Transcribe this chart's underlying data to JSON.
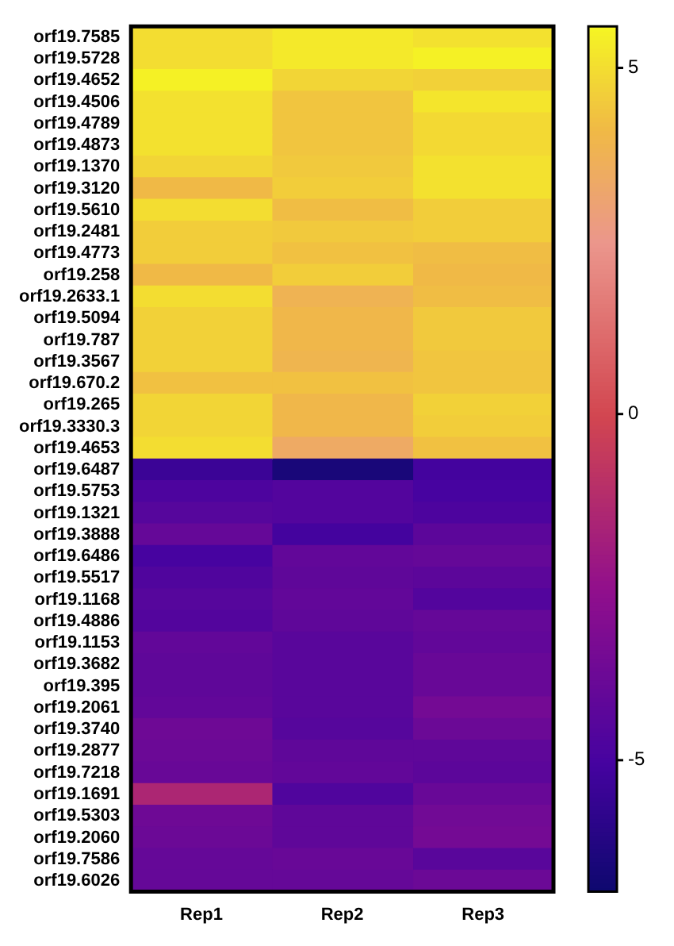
{
  "chart_data": {
    "type": "heatmap",
    "categories": [
      "Rep1",
      "Rep2",
      "Rep3"
    ],
    "y_categories": [
      "orf19.7585",
      "orf19.5728",
      "orf19.4652",
      "orf19.4506",
      "orf19.4789",
      "orf19.4873",
      "orf19.1370",
      "orf19.3120",
      "orf19.5610",
      "orf19.2481",
      "orf19.4773",
      "orf19.258",
      "orf19.2633.1",
      "orf19.5094",
      "orf19.787",
      "orf19.3567",
      "orf19.670.2",
      "orf19.265",
      "orf19.3330.3",
      "orf19.4653",
      "orf19.6487",
      "orf19.5753",
      "orf19.1321",
      "orf19.3888",
      "orf19.6486",
      "orf19.5517",
      "orf19.1168",
      "orf19.4886",
      "orf19.1153",
      "orf19.3682",
      "orf19.395",
      "orf19.2061",
      "orf19.3740",
      "orf19.2877",
      "orf19.7218",
      "orf19.1691",
      "orf19.5303",
      "orf19.2060",
      "orf19.7586",
      "orf19.6026"
    ],
    "cells": [
      [
        5.0,
        5.3,
        5.1
      ],
      [
        5.0,
        5.3,
        5.5
      ],
      [
        5.5,
        4.8,
        4.7
      ],
      [
        5.1,
        4.4,
        5.2
      ],
      [
        5.1,
        4.4,
        4.9
      ],
      [
        5.1,
        4.4,
        4.9
      ],
      [
        4.8,
        4.5,
        5.1
      ],
      [
        4.1,
        4.6,
        5.1
      ],
      [
        5.0,
        4.2,
        4.6
      ],
      [
        4.6,
        4.5,
        4.6
      ],
      [
        4.6,
        4.3,
        4.2
      ],
      [
        4.1,
        4.6,
        4.1
      ],
      [
        5.0,
        3.8,
        4.2
      ],
      [
        4.7,
        4.0,
        4.5
      ],
      [
        4.7,
        4.0,
        4.5
      ],
      [
        4.7,
        3.9,
        4.4
      ],
      [
        4.3,
        4.3,
        4.4
      ],
      [
        4.8,
        4.0,
        4.7
      ],
      [
        4.8,
        4.0,
        4.6
      ],
      [
        5.0,
        3.4,
        4.3
      ],
      [
        -5.4,
        -6.5,
        -5.1
      ],
      [
        -4.8,
        -4.6,
        -5.0
      ],
      [
        -4.5,
        -4.6,
        -4.8
      ],
      [
        -4.0,
        -5.1,
        -4.3
      ],
      [
        -5.0,
        -4.1,
        -4.0
      ],
      [
        -4.7,
        -4.2,
        -4.3
      ],
      [
        -4.5,
        -4.1,
        -4.6
      ],
      [
        -4.6,
        -4.2,
        -4.0
      ],
      [
        -4.1,
        -4.4,
        -4.1
      ],
      [
        -4.2,
        -4.4,
        -3.9
      ],
      [
        -4.2,
        -4.4,
        -3.9
      ],
      [
        -4.1,
        -4.4,
        -3.5
      ],
      [
        -3.7,
        -4.5,
        -3.8
      ],
      [
        -3.8,
        -4.2,
        -4.2
      ],
      [
        -3.9,
        -4.1,
        -4.3
      ],
      [
        -1.5,
        -4.7,
        -3.9
      ],
      [
        -3.7,
        -4.2,
        -3.6
      ],
      [
        -3.8,
        -4.2,
        -3.5
      ],
      [
        -4.0,
        -3.9,
        -4.4
      ],
      [
        -4.0,
        -4.0,
        -3.8
      ]
    ],
    "clim": [
      -6.9,
      5.6
    ],
    "cticks": [
      -5,
      0,
      5
    ]
  }
}
